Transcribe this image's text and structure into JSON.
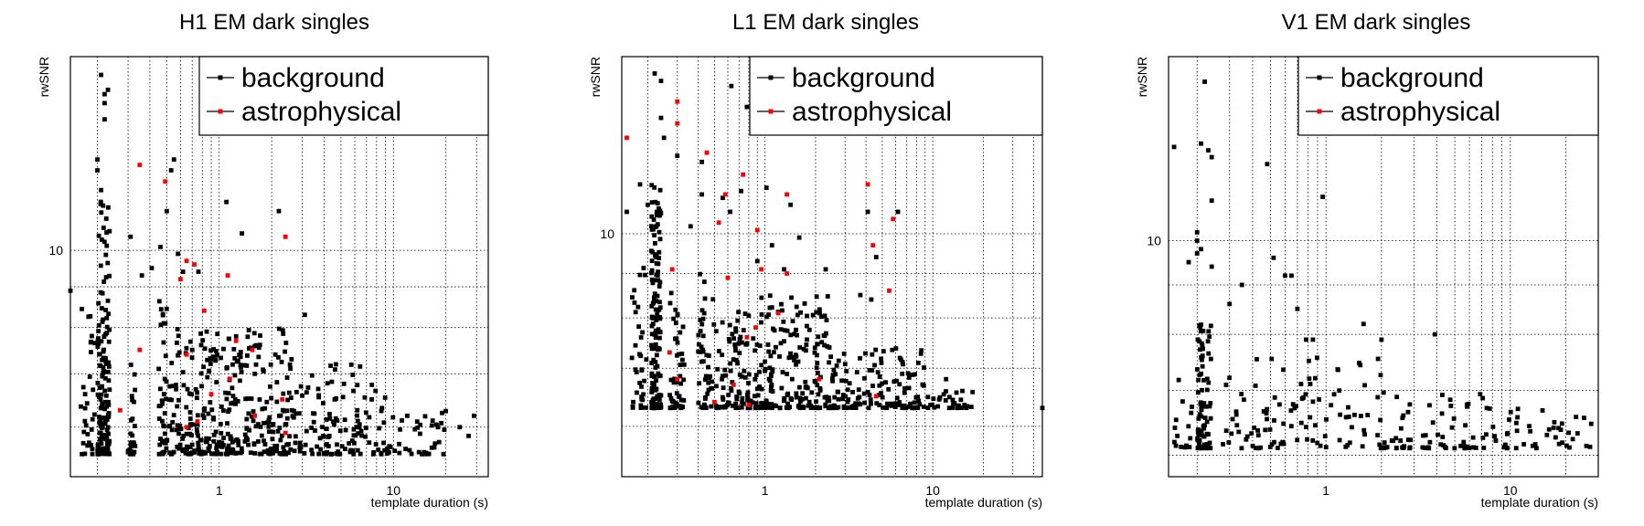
{
  "chart_data": [
    {
      "type": "scatter",
      "title": "H1 EM dark singles",
      "xlabel": "template duration (s)",
      "ylabel": "rwSNR",
      "xscale": "log",
      "yscale": "log",
      "xlim": [
        0.14,
        35
      ],
      "ylim": [
        5.2,
        17.5
      ],
      "xticks": [
        {
          "v": 1,
          "label": "1"
        },
        {
          "v": 10,
          "label": "10"
        }
      ],
      "yticks": [
        {
          "v": 10,
          "label": "10"
        }
      ],
      "grid": true,
      "legend": {
        "position": "top-right",
        "entries": [
          "background",
          "astrophysical"
        ]
      },
      "series": [
        {
          "name": "background",
          "color": "#000000",
          "seed": 11,
          "points": [
            [
              0.14,
              8.9
            ],
            [
              0.2,
              13
            ],
            [
              0.2,
              12.6
            ],
            [
              0.21,
              11.9
            ],
            [
              0.21,
              16.6
            ],
            [
              0.22,
              15.7
            ],
            [
              0.22,
              15.3
            ],
            [
              0.22,
              14.6
            ],
            [
              0.23,
              15.9
            ],
            [
              0.31,
              10.4
            ],
            [
              0.36,
              9.3
            ],
            [
              0.41,
              9.5
            ],
            [
              0.46,
              10.1
            ],
            [
              0.5,
              11.2
            ],
            [
              0.53,
              12.6
            ],
            [
              0.55,
              13
            ],
            [
              0.58,
              9.9
            ],
            [
              0.62,
              9.4
            ],
            [
              0.76,
              9.4
            ],
            [
              1.1,
              11.5
            ],
            [
              1.35,
              10.5
            ],
            [
              2.2,
              11.2
            ],
            [
              3.1,
              8.3
            ],
            [
              0.45,
              7.1
            ],
            [
              0.7,
              7.5
            ],
            [
              0.9,
              7.3
            ],
            [
              1.25,
              7.8
            ],
            [
              1.6,
              7
            ],
            [
              2.1,
              7.4
            ],
            [
              2.6,
              7.3
            ],
            [
              5.2,
              6.8
            ],
            [
              6.2,
              6.3
            ],
            [
              7.5,
              6.5
            ],
            [
              12,
              6.2
            ],
            [
              18,
              6
            ],
            [
              24,
              6
            ],
            [
              27,
              5.85
            ],
            [
              29,
              6.2
            ],
            [
              4.6,
              6.5
            ],
            [
              3.7,
              6.7
            ]
          ],
          "bands": [
            {
              "x": [
                0.2,
                0.235
              ],
              "y": [
                5.55,
                11.6
              ],
              "n": 160
            },
            {
              "x": [
                0.16,
                0.195
              ],
              "y": [
                5.55,
                8.5
              ],
              "n": 30
            },
            {
              "x": [
                0.3,
                0.33
              ],
              "y": [
                5.55,
                7.2
              ],
              "n": 28
            },
            {
              "x": [
                0.45,
                0.5
              ],
              "y": [
                5.55,
                8.8
              ],
              "n": 40
            },
            {
              "x": [
                0.5,
                2.5
              ],
              "y": [
                5.55,
                8.0
              ],
              "n": 330
            },
            {
              "x": [
                2.5,
                9.0
              ],
              "y": [
                5.55,
                7.2
              ],
              "n": 130
            },
            {
              "x": [
                9.0,
                20.0
              ],
              "y": [
                5.55,
                6.3
              ],
              "n": 40
            }
          ]
        },
        {
          "name": "astrophysical",
          "color": "#ff0000",
          "points": [
            [
              0.35,
              12.8
            ],
            [
              0.49,
              12.2
            ],
            [
              0.65,
              9.7
            ],
            [
              0.72,
              9.6
            ],
            [
              0.6,
              9.2
            ],
            [
              1.12,
              9.3
            ],
            [
              2.4,
              10.4
            ],
            [
              0.82,
              8.4
            ],
            [
              0.35,
              7.5
            ],
            [
              0.65,
              7.4
            ],
            [
              1.25,
              7.7
            ],
            [
              1.55,
              7.5
            ],
            [
              0.9,
              6.6
            ],
            [
              1.15,
              6.9
            ],
            [
              2.3,
              6.5
            ],
            [
              0.65,
              6.0
            ],
            [
              0.27,
              6.3
            ],
            [
              1.6,
              6.2
            ],
            [
              2.4,
              5.9
            ],
            [
              0.75,
              6.1
            ]
          ]
        }
      ]
    },
    {
      "type": "scatter",
      "title": "L1 EM dark singles",
      "xlabel": "template duration (s)",
      "ylabel": "rwSNR",
      "xscale": "log",
      "yscale": "log",
      "xlim": [
        0.14,
        45
      ],
      "ylim": [
        5.25,
        16
      ],
      "xticks": [
        {
          "v": 1,
          "label": "1"
        },
        {
          "v": 10,
          "label": "10"
        }
      ],
      "yticks": [
        {
          "v": 10,
          "label": "10"
        }
      ],
      "grid": true,
      "legend": {
        "position": "top-right",
        "entries": [
          "background",
          "astrophysical"
        ]
      },
      "series": [
        {
          "name": "background",
          "color": "#000000",
          "seed": 23,
          "points": [
            [
              0.22,
              15.3
            ],
            [
              0.24,
              15
            ],
            [
              0.24,
              13.6
            ],
            [
              0.25,
              12.9
            ],
            [
              0.3,
              12.3
            ],
            [
              0.42,
              12.1
            ],
            [
              0.63,
              14.8
            ],
            [
              0.78,
              14
            ],
            [
              0.72,
              11.2
            ],
            [
              0.62,
              10.6
            ],
            [
              0.42,
              11.1
            ],
            [
              0.56,
              11
            ],
            [
              1.02,
              11.3
            ],
            [
              1.42,
              10.8
            ],
            [
              1.6,
              9.9
            ],
            [
              4.1,
              10.6
            ],
            [
              6.2,
              10.6
            ],
            [
              4.6,
              9.4
            ],
            [
              0.18,
              11.4
            ],
            [
              0.15,
              10.6
            ],
            [
              0.2,
              10.8
            ],
            [
              0.36,
              10.2
            ],
            [
              0.9,
              9.3
            ],
            [
              1.1,
              9.7
            ],
            [
              1.3,
              9.1
            ],
            [
              2.3,
              9.1
            ],
            [
              3.7,
              8.5
            ],
            [
              4.3,
              8.4
            ],
            [
              8.2,
              7.1
            ],
            [
              12,
              6.8
            ],
            [
              45,
              6.3
            ]
          ],
          "bands": [
            {
              "x": [
                0.21,
                0.24
              ],
              "y": [
                6.3,
                11.4
              ],
              "n": 170
            },
            {
              "x": [
                0.16,
                0.2
              ],
              "y": [
                6.3,
                9.6
              ],
              "n": 35
            },
            {
              "x": [
                0.27,
                0.33
              ],
              "y": [
                6.3,
                8.6
              ],
              "n": 50
            },
            {
              "x": [
                0.4,
                0.45
              ],
              "y": [
                6.3,
                9.0
              ],
              "n": 35
            },
            {
              "x": [
                0.45,
                2.5
              ],
              "y": [
                6.3,
                8.5
              ],
              "n": 300
            },
            {
              "x": [
                2.5,
                9.0
              ],
              "y": [
                6.3,
                7.4
              ],
              "n": 130
            },
            {
              "x": [
                9.0,
                18.0
              ],
              "y": [
                6.3,
                6.6
              ],
              "n": 30
            }
          ]
        },
        {
          "name": "astrophysical",
          "color": "#ff0000",
          "points": [
            [
              0.15,
              12.9
            ],
            [
              0.3,
              14.2
            ],
            [
              0.3,
              13.4
            ],
            [
              0.45,
              12.4
            ],
            [
              2.0,
              13.2
            ],
            [
              4.5,
              13.4
            ],
            [
              0.74,
              11.7
            ],
            [
              0.58,
              11.1
            ],
            [
              1.35,
              11.1
            ],
            [
              4.1,
              11.4
            ],
            [
              0.53,
              10.3
            ],
            [
              0.9,
              10.1
            ],
            [
              5.8,
              10.4
            ],
            [
              4.4,
              9.7
            ],
            [
              0.28,
              9.1
            ],
            [
              0.6,
              8.9
            ],
            [
              0.95,
              9.1
            ],
            [
              1.35,
              9.0
            ],
            [
              5.5,
              8.6
            ],
            [
              0.78,
              7.6
            ],
            [
              0.88,
              7.8
            ],
            [
              1.2,
              8.1
            ],
            [
              0.27,
              7.3
            ],
            [
              0.3,
              6.8
            ],
            [
              0.5,
              6.4
            ],
            [
              0.65,
              6.7
            ],
            [
              2.1,
              6.8
            ],
            [
              4.6,
              6.5
            ],
            [
              0.8,
              6.35
            ]
          ]
        }
      ]
    },
    {
      "type": "scatter",
      "title": "V1 EM dark singles",
      "xlabel": "template duration (s)",
      "ylabel": "rwSNR",
      "xscale": "log",
      "yscale": "log",
      "xlim": [
        0.14,
        30
      ],
      "ylim": [
        5.7,
        15.5
      ],
      "xticks": [
        {
          "v": 1,
          "label": "1"
        },
        {
          "v": 10,
          "label": "10"
        }
      ],
      "yticks": [
        {
          "v": 10,
          "label": "10"
        }
      ],
      "grid": true,
      "legend": {
        "position": "top-right",
        "entries": [
          "background",
          "astrophysical"
        ]
      },
      "series": [
        {
          "name": "background",
          "color": "#000000",
          "seed": 37,
          "points": [
            [
              0.22,
              14.6
            ],
            [
              0.21,
              12.6
            ],
            [
              0.15,
              12.5
            ],
            [
              0.23,
              12.4
            ],
            [
              0.24,
              12.2
            ],
            [
              0.48,
              12
            ],
            [
              0.24,
              11
            ],
            [
              0.96,
              11.1
            ],
            [
              0.2,
              10.2
            ],
            [
              0.2,
              10
            ],
            [
              0.2,
              9.7
            ],
            [
              0.21,
              9.8
            ],
            [
              0.18,
              9.5
            ],
            [
              0.24,
              9.4
            ],
            [
              0.35,
              9.0
            ],
            [
              0.52,
              9.6
            ],
            [
              0.6,
              9.2
            ],
            [
              0.65,
              9.2
            ],
            [
              0.7,
              8.5
            ],
            [
              0.85,
              7.9
            ],
            [
              0.78,
              7.9
            ],
            [
              1.6,
              8.2
            ],
            [
              2.0,
              7.9
            ],
            [
              3.9,
              8.0
            ],
            [
              0.3,
              8.6
            ]
          ],
          "bands": [
            {
              "x": [
                0.2,
                0.24
              ],
              "y": [
                6.1,
                8.2
              ],
              "n": 80
            },
            {
              "x": [
                0.15,
                0.19
              ],
              "y": [
                6.1,
                7.3
              ],
              "n": 15
            },
            {
              "x": [
                0.27,
                0.6
              ],
              "y": [
                6.1,
                7.6
              ],
              "n": 45
            },
            {
              "x": [
                0.6,
                2.5
              ],
              "y": [
                6.1,
                7.6
              ],
              "n": 70
            },
            {
              "x": [
                2.5,
                9.0
              ],
              "y": [
                6.1,
                7.0
              ],
              "n": 60
            },
            {
              "x": [
                9.0,
                28.0
              ],
              "y": [
                6.1,
                6.7
              ],
              "n": 40
            }
          ]
        },
        {
          "name": "astrophysical",
          "color": "#ff0000",
          "points": []
        }
      ]
    }
  ]
}
